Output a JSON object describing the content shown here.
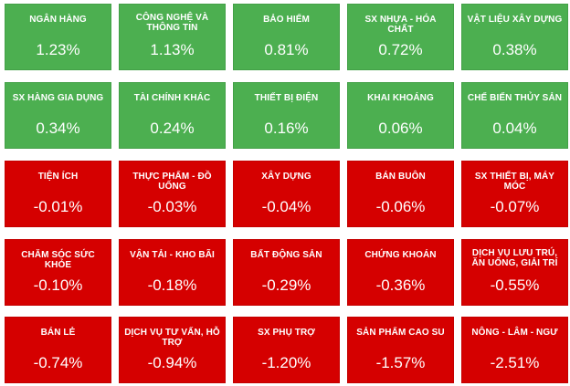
{
  "colors": {
    "up": "#4caf50",
    "down": "#d50000"
  },
  "tiles": [
    {
      "name": "NGÂN HÀNG",
      "value": "1.23%",
      "dir": "up"
    },
    {
      "name": "CÔNG NGHỆ VÀ THÔNG TIN",
      "value": "1.13%",
      "dir": "up"
    },
    {
      "name": "BẢO HIỂM",
      "value": "0.81%",
      "dir": "up"
    },
    {
      "name": "SX NHỰA - HÓA CHẤT",
      "value": "0.72%",
      "dir": "up"
    },
    {
      "name": "VẬT LIỆU XÂY DỰNG",
      "value": "0.38%",
      "dir": "up"
    },
    {
      "name": "SX HÀNG GIA DỤNG",
      "value": "0.34%",
      "dir": "up"
    },
    {
      "name": "TÀI CHÍNH KHÁC",
      "value": "0.24%",
      "dir": "up"
    },
    {
      "name": "THIẾT BỊ ĐIỆN",
      "value": "0.16%",
      "dir": "up"
    },
    {
      "name": "KHAI KHOÁNG",
      "value": "0.06%",
      "dir": "up"
    },
    {
      "name": "CHẾ BIẾN THỦY SẢN",
      "value": "0.04%",
      "dir": "up"
    },
    {
      "name": "TIỆN ÍCH",
      "value": "-0.01%",
      "dir": "down"
    },
    {
      "name": "THỰC PHẨM - ĐỒ UỐNG",
      "value": "-0.03%",
      "dir": "down"
    },
    {
      "name": "XÂY DỰNG",
      "value": "-0.04%",
      "dir": "down"
    },
    {
      "name": "BÁN BUÔN",
      "value": "-0.06%",
      "dir": "down"
    },
    {
      "name": "SX THIẾT BỊ, MÁY MÓC",
      "value": "-0.07%",
      "dir": "down"
    },
    {
      "name": "CHĂM SÓC SỨC KHỎE",
      "value": "-0.10%",
      "dir": "down"
    },
    {
      "name": "VẬN TẢI - KHO BÃI",
      "value": "-0.18%",
      "dir": "down"
    },
    {
      "name": "BẤT ĐỘNG SẢN",
      "value": "-0.29%",
      "dir": "down"
    },
    {
      "name": "CHỨNG KHOÁN",
      "value": "-0.36%",
      "dir": "down"
    },
    {
      "name": "DỊCH VỤ LƯU TRÚ, ĂN UỐNG, GIẢI TRÍ",
      "value": "-0.55%",
      "dir": "down"
    },
    {
      "name": "BÁN LẺ",
      "value": "-0.74%",
      "dir": "down"
    },
    {
      "name": "DỊCH VỤ TƯ VẤN, HỖ TRỢ",
      "value": "-0.94%",
      "dir": "down"
    },
    {
      "name": "SX PHỤ TRỢ",
      "value": "-1.20%",
      "dir": "down"
    },
    {
      "name": "SẢN PHẨM CAO SU",
      "value": "-1.57%",
      "dir": "down"
    },
    {
      "name": "NÔNG - LÂM - NGƯ",
      "value": "-2.51%",
      "dir": "down"
    }
  ]
}
